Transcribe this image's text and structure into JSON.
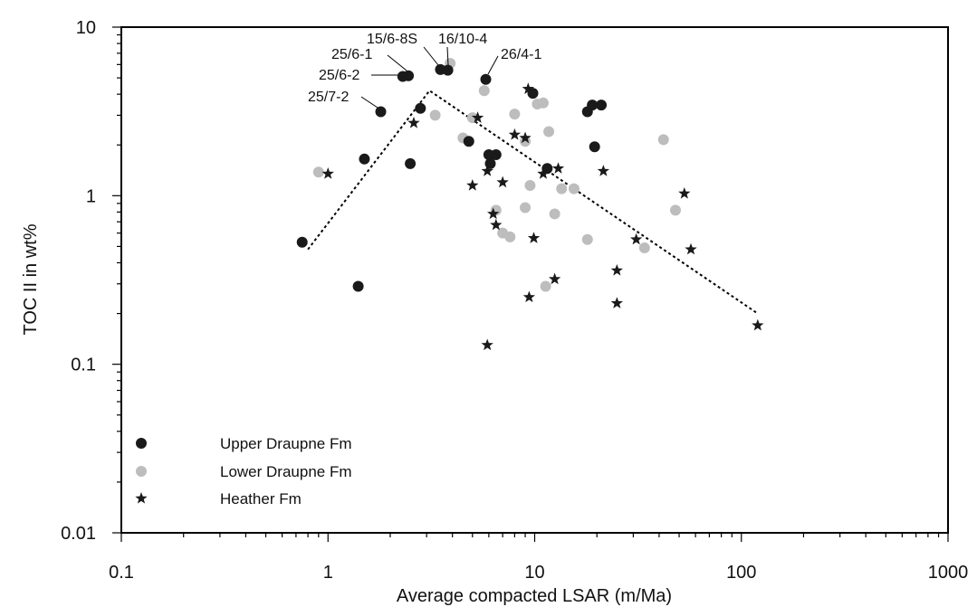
{
  "chart_data": {
    "type": "scatter",
    "xlabel": "Average compacted LSAR (m/Ma)",
    "ylabel": "TOC II in wt%",
    "xscale": "log",
    "yscale": "log",
    "xlim": [
      0.1,
      1000
    ],
    "ylim": [
      0.01,
      10
    ],
    "grid": false,
    "legend_position": "bottom-left",
    "x_tick_labels": [
      "0.1",
      "1",
      "10",
      "100",
      "1000"
    ],
    "y_tick_labels": [
      "0.01",
      "0.1",
      "1",
      "10"
    ],
    "series": [
      {
        "name": "Upper Draupne Fm",
        "marker": "circle",
        "color": "#1a1a1a",
        "points": [
          [
            0.75,
            0.53
          ],
          [
            1.4,
            0.29
          ],
          [
            1.5,
            1.65
          ],
          [
            1.8,
            3.15
          ],
          [
            2.3,
            5.1
          ],
          [
            2.45,
            5.15
          ],
          [
            2.5,
            1.55
          ],
          [
            2.8,
            3.3
          ],
          [
            3.5,
            5.6
          ],
          [
            3.8,
            5.55
          ],
          [
            4.8,
            2.1
          ],
          [
            5.8,
            4.9
          ],
          [
            6.0,
            1.75
          ],
          [
            6.1,
            1.55
          ],
          [
            6.5,
            1.75
          ],
          [
            9.8,
            4.05
          ],
          [
            11.5,
            1.45
          ],
          [
            18.0,
            3.15
          ],
          [
            19.0,
            3.45
          ],
          [
            19.5,
            1.95
          ],
          [
            21.0,
            3.45
          ]
        ]
      },
      {
        "name": "Lower Draupne Fm",
        "marker": "circle",
        "color": "#bdbdbd",
        "points": [
          [
            0.9,
            1.38
          ],
          [
            3.3,
            3.0
          ],
          [
            3.9,
            6.1
          ],
          [
            4.5,
            2.2
          ],
          [
            5.0,
            2.9
          ],
          [
            5.7,
            4.2
          ],
          [
            6.5,
            0.82
          ],
          [
            7.0,
            0.6
          ],
          [
            7.6,
            0.57
          ],
          [
            8.0,
            3.05
          ],
          [
            9.0,
            2.1
          ],
          [
            9.0,
            0.85
          ],
          [
            9.5,
            1.15
          ],
          [
            10.3,
            3.5
          ],
          [
            11.0,
            3.55
          ],
          [
            11.3,
            0.29
          ],
          [
            11.7,
            2.4
          ],
          [
            12.5,
            0.78
          ],
          [
            13.5,
            1.1
          ],
          [
            15.5,
            1.1
          ],
          [
            18.0,
            0.55
          ],
          [
            34.0,
            0.49
          ],
          [
            42.0,
            2.15
          ],
          [
            48.0,
            0.82
          ]
        ]
      },
      {
        "name": "Heather Fm",
        "marker": "star",
        "color": "#1a1a1a",
        "points": [
          [
            1.0,
            1.35
          ],
          [
            2.6,
            2.7
          ],
          [
            5.0,
            1.15
          ],
          [
            5.3,
            2.9
          ],
          [
            5.9,
            1.4
          ],
          [
            5.9,
            0.13
          ],
          [
            6.3,
            0.78
          ],
          [
            6.5,
            0.67
          ],
          [
            7.0,
            1.2
          ],
          [
            8.0,
            2.3
          ],
          [
            9.0,
            2.2
          ],
          [
            9.3,
            4.3
          ],
          [
            9.4,
            0.25
          ],
          [
            9.9,
            0.56
          ],
          [
            11.0,
            1.35
          ],
          [
            12.5,
            0.32
          ],
          [
            13.0,
            1.45
          ],
          [
            21.5,
            1.4
          ],
          [
            25.0,
            0.36
          ],
          [
            25.0,
            0.23
          ],
          [
            31.0,
            0.55
          ],
          [
            53.0,
            1.03
          ],
          [
            57.0,
            0.48
          ],
          [
            120.0,
            0.17
          ]
        ]
      }
    ],
    "trend_line": {
      "style": "dotted",
      "points": [
        [
          0.8,
          0.48
        ],
        [
          3.1,
          4.2
        ],
        [
          120.0,
          0.2
        ]
      ]
    },
    "annotations": [
      {
        "text": "15/6-8S",
        "point": [
          3.5,
          5.6
        ]
      },
      {
        "text": "16/10-4",
        "point": [
          3.8,
          5.55
        ]
      },
      {
        "text": "25/6-1",
        "point": [
          2.45,
          5.15
        ]
      },
      {
        "text": "26/4-1",
        "point": [
          5.8,
          4.9
        ]
      },
      {
        "text": "25/6-2",
        "point": [
          2.3,
          5.1
        ]
      },
      {
        "text": "25/7-2",
        "point": [
          1.8,
          3.15
        ]
      }
    ]
  }
}
